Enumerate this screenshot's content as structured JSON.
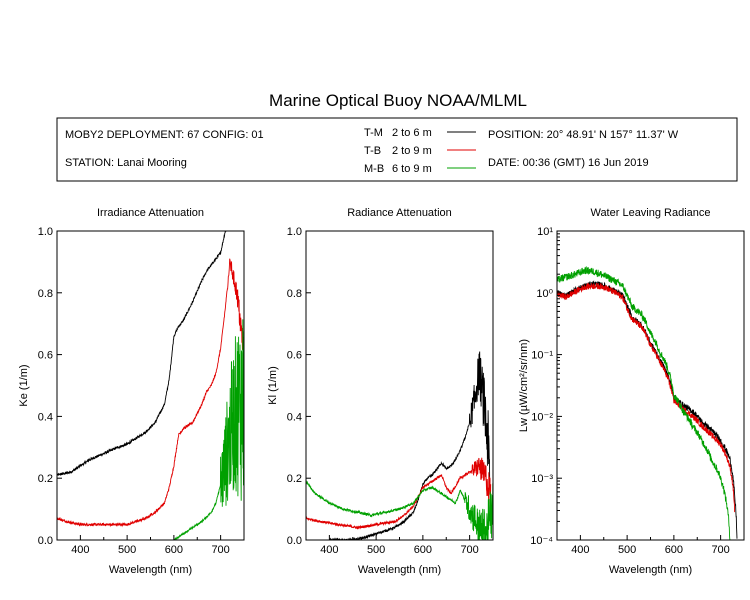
{
  "title": "Marine Optical Buoy NOAA/MLML",
  "info": {
    "deployment": "MOBY2 DEPLOYMENT: 67 CONFIG: 01",
    "station": "STATION: Lanai Mooring",
    "position": "POSITION: 20° 48.91' N   157° 11.37' W",
    "date": "DATE: 00:36 (GMT) 16 Jun 2019",
    "legend": [
      {
        "name": "T-M",
        "range": "2 to 6  m",
        "color": "#000000"
      },
      {
        "name": "T-B",
        "range": "2 to 9  m",
        "color": "#e00000"
      },
      {
        "name": "M-B",
        "range": "6 to 9  m",
        "color": "#00a000"
      }
    ]
  },
  "chart_data": [
    {
      "type": "line",
      "title": "Irradiance Attenuation",
      "xlabel": "Wavelength (nm)",
      "ylabel": "Ke  (1/m)",
      "xlim": [
        350,
        750
      ],
      "ylim": [
        0,
        1.0
      ],
      "yscale": "linear",
      "xticks": [
        400,
        500,
        600,
        700
      ],
      "xticklabels": [
        "400",
        "500",
        "600",
        "700"
      ],
      "yticks": [
        0,
        0.2,
        0.4,
        0.6,
        0.8,
        1.0
      ],
      "yticklabels": [
        "0.0",
        "0.2",
        "0.4",
        "0.6",
        "0.8",
        "1.0"
      ],
      "series": [
        {
          "name": "T-M",
          "color": "#000000",
          "noise": 0.004,
          "x": [
            350,
            380,
            400,
            420,
            450,
            480,
            500,
            520,
            540,
            560,
            580,
            590,
            600,
            610,
            620,
            640,
            660,
            670,
            680,
            700,
            710,
            720
          ],
          "y": [
            0.21,
            0.22,
            0.24,
            0.26,
            0.28,
            0.3,
            0.31,
            0.33,
            0.35,
            0.38,
            0.44,
            0.52,
            0.66,
            0.69,
            0.71,
            0.77,
            0.84,
            0.87,
            0.89,
            0.93,
            1.0,
            1.02
          ]
        },
        {
          "name": "T-B",
          "color": "#e00000",
          "noise": 0.004,
          "hfnoise": [
            715,
            750,
            0.05
          ],
          "x": [
            350,
            370,
            400,
            430,
            460,
            500,
            520,
            540,
            560,
            580,
            590,
            600,
            610,
            620,
            640,
            660,
            670,
            680,
            690,
            700,
            710,
            720,
            735,
            750
          ],
          "y": [
            0.07,
            0.06,
            0.05,
            0.05,
            0.05,
            0.05,
            0.06,
            0.07,
            0.09,
            0.12,
            0.17,
            0.24,
            0.34,
            0.36,
            0.38,
            0.44,
            0.48,
            0.5,
            0.54,
            0.62,
            0.75,
            0.9,
            0.8,
            0.6
          ]
        },
        {
          "name": "M-B",
          "color": "#00a000",
          "noise": 0.003,
          "hfnoise": [
            700,
            750,
            0.35
          ],
          "x": [
            600,
            620,
            640,
            660,
            680,
            690,
            700,
            710,
            720,
            735,
            750
          ],
          "y": [
            0.0,
            0.02,
            0.04,
            0.06,
            0.09,
            0.12,
            0.18,
            0.25,
            0.35,
            0.42,
            0.45
          ]
        }
      ]
    },
    {
      "type": "line",
      "title": "Radiance Attenuation",
      "xlabel": "Wavelength (nm)",
      "ylabel": "Kl  (1/m)",
      "xlim": [
        350,
        750
      ],
      "ylim": [
        0,
        1.0
      ],
      "yscale": "linear",
      "xticks": [
        400,
        500,
        600,
        700
      ],
      "xticklabels": [
        "400",
        "500",
        "600",
        "700"
      ],
      "yticks": [
        0,
        0.2,
        0.4,
        0.6,
        0.8,
        1.0
      ],
      "yticklabels": [
        "0.0",
        "0.2",
        "0.4",
        "0.6",
        "0.8",
        "1.0"
      ],
      "series": [
        {
          "name": "T-M",
          "color": "#000000",
          "noise": 0.004,
          "hfnoise": [
            700,
            745,
            0.12
          ],
          "x": [
            400,
            420,
            450,
            480,
            500,
            520,
            540,
            560,
            580,
            590,
            600,
            610,
            620,
            640,
            650,
            660,
            670,
            680,
            690,
            700,
            710,
            720,
            730,
            740,
            745
          ],
          "y": [
            0.0,
            0.0,
            0.0,
            0.01,
            0.02,
            0.03,
            0.04,
            0.06,
            0.09,
            0.13,
            0.18,
            0.2,
            0.21,
            0.25,
            0.23,
            0.24,
            0.26,
            0.29,
            0.33,
            0.38,
            0.45,
            0.55,
            0.45,
            0.3,
            0.1
          ]
        },
        {
          "name": "T-B",
          "color": "#e00000",
          "noise": 0.004,
          "hfnoise": [
            705,
            745,
            0.06
          ],
          "x": [
            350,
            380,
            420,
            460,
            500,
            540,
            560,
            580,
            590,
            600,
            620,
            640,
            650,
            660,
            680,
            700,
            720,
            735,
            745
          ],
          "y": [
            0.07,
            0.06,
            0.05,
            0.04,
            0.05,
            0.06,
            0.08,
            0.11,
            0.14,
            0.17,
            0.19,
            0.21,
            0.17,
            0.15,
            0.2,
            0.22,
            0.24,
            0.2,
            0.15
          ]
        },
        {
          "name": "M-B",
          "color": "#00a000",
          "noise": 0.004,
          "hfnoise": [
            690,
            750,
            0.1
          ],
          "x": [
            350,
            370,
            400,
            430,
            460,
            490,
            520,
            550,
            580,
            590,
            600,
            620,
            640,
            660,
            670,
            680,
            700,
            720,
            735,
            750
          ],
          "y": [
            0.19,
            0.15,
            0.12,
            0.1,
            0.09,
            0.08,
            0.09,
            0.1,
            0.12,
            0.14,
            0.16,
            0.17,
            0.15,
            0.13,
            0.12,
            0.16,
            0.1,
            0.04,
            0.02,
            0.1
          ]
        }
      ]
    },
    {
      "type": "line",
      "title": "Water Leaving Radiance",
      "xlabel": "Wavelength (nm)",
      "ylabel": "Lw  (µW/cm²/sr/nm)",
      "xlim": [
        350,
        750
      ],
      "ylim": [
        0.0001,
        10
      ],
      "yscale": "log",
      "xticks": [
        400,
        500,
        600,
        700
      ],
      "xticklabels": [
        "400",
        "500",
        "600",
        "700"
      ],
      "yticks": [
        10,
        1,
        0.1,
        0.01,
        0.001,
        0.0001
      ],
      "yticklabels": [
        "10¹",
        "10⁰",
        "10⁻¹",
        "10⁻²",
        "10⁻³",
        "10⁻⁴"
      ],
      "series": [
        {
          "name": "T-M",
          "color": "#000000",
          "noise": 0.05,
          "x": [
            350,
            370,
            390,
            410,
            430,
            450,
            470,
            490,
            500,
            510,
            530,
            550,
            570,
            590,
            600,
            620,
            640,
            660,
            680,
            700,
            710,
            720,
            730,
            735
          ],
          "y": [
            1.0,
            0.9,
            1.1,
            1.3,
            1.4,
            1.3,
            1.1,
            0.9,
            0.6,
            0.4,
            0.3,
            0.15,
            0.08,
            0.04,
            0.02,
            0.015,
            0.012,
            0.008,
            0.006,
            0.004,
            0.003,
            0.002,
            0.0005,
            0.0001
          ]
        },
        {
          "name": "T-B",
          "color": "#e00000",
          "noise": 0.05,
          "x": [
            350,
            370,
            390,
            410,
            430,
            450,
            470,
            490,
            500,
            510,
            530,
            550,
            570,
            590,
            600,
            620,
            640,
            660,
            680,
            700,
            710,
            720,
            730
          ],
          "y": [
            0.95,
            0.85,
            1.05,
            1.25,
            1.3,
            1.25,
            1.05,
            0.85,
            0.55,
            0.38,
            0.28,
            0.14,
            0.075,
            0.035,
            0.018,
            0.013,
            0.01,
            0.007,
            0.005,
            0.0035,
            0.0025,
            0.0015,
            0.0003
          ]
        },
        {
          "name": "M-B",
          "color": "#00a000",
          "noise": 0.06,
          "x": [
            350,
            370,
            390,
            410,
            430,
            450,
            470,
            490,
            500,
            510,
            530,
            550,
            570,
            590,
            600,
            620,
            640,
            660,
            680,
            700,
            710,
            715,
            720
          ],
          "y": [
            1.6,
            1.8,
            2.0,
            2.3,
            2.2,
            1.9,
            1.6,
            1.3,
            0.9,
            0.6,
            0.45,
            0.22,
            0.11,
            0.05,
            0.022,
            0.012,
            0.007,
            0.004,
            0.002,
            0.001,
            0.0005,
            0.0003,
            0.0001
          ]
        }
      ]
    }
  ]
}
